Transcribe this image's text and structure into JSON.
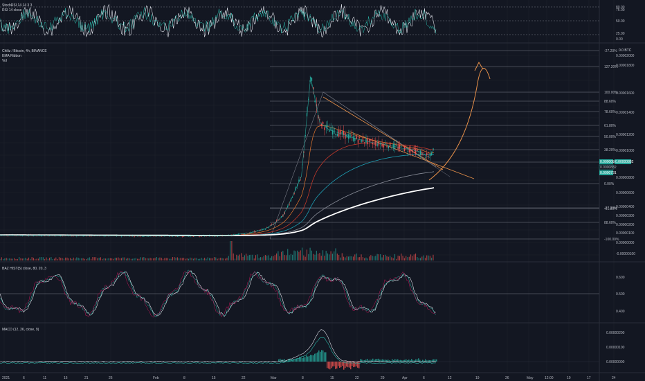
{
  "colors": {
    "background": "#131722",
    "grid": "#1e222d",
    "separator": "#2a2e39",
    "price_line": "#ffffff",
    "ema_orange": "#e8772e",
    "ema_red": "#c0392b",
    "ema_teal": "#1e9fb4",
    "ema_grey": "#8a8e99",
    "candle_up": "#26a69a",
    "candle_down": "#ef5350",
    "fib_line": "#787b86",
    "osc_white": "#e0e3eb",
    "osc_teal": "#2ab7a9",
    "osc_red": "#c2185b",
    "current_price_tag": "#26a69a",
    "trend_orange": "#e8914a"
  },
  "rsi_pane": {
    "legend": [
      "StochRSI 14 14 3 3",
      "RSI 14 close"
    ],
    "axis_ticks": [
      "80.00",
      "75.00",
      "50.00",
      "25.00",
      "0.00"
    ]
  },
  "main_pane": {
    "legend": [
      "Chiliz / Bitcoin, 4h, BINANCE",
      "EMA Ribbon",
      "Vol"
    ],
    "currency_label": "0.0 BTC",
    "price_ticks": [
      "0.00002000",
      "0.00001800",
      "0.00001600",
      "0.00001400",
      "0.00001200",
      "0.00001000",
      "0.00000800",
      "0.00000600",
      "0.00000400",
      "0.00000300",
      "0.00000200",
      "0.00000100",
      "0.00000000",
      "-0.00000100"
    ],
    "fib_labels": [
      "-27.20%",
      "127.20%",
      "100.00%",
      "88.60%",
      "78.60%",
      "61.80%",
      "50.00%",
      "38.20%",
      "23.60%",
      "0.00%",
      "-27.20%",
      "-61.80%",
      "88.60%",
      "-100.00%"
    ],
    "current_price": "0.00000882",
    "price_tags": [
      "0.00000882",
      "0.0000882",
      "0.0000731"
    ]
  },
  "osc_pane_1": {
    "legend": "BAZ HIST(5) close, 80, 20, 3",
    "axis_ticks": [
      "0.600",
      "0.500",
      "0.400"
    ]
  },
  "macd_pane": {
    "legend": "MACD (12, 26, close, 9)",
    "axis_ticks": [
      "0.00000200",
      "0.00000100",
      "0.00000000"
    ]
  },
  "time_axis": [
    "2021",
    "6",
    "11",
    "16",
    "21",
    "26",
    "Feb",
    "8",
    "15",
    "22",
    "Mar",
    "8",
    "15",
    "22",
    "29",
    "Apr",
    "6",
    "12",
    "19",
    "26",
    "May",
    "12:00",
    "10",
    "17",
    "24"
  ],
  "chart_data": {
    "type": "line",
    "title": "Chiliz / Bitcoin, 4h, BINANCE",
    "series": [
      {
        "name": "",
        "x": [
          0,
          5,
          10,
          20,
          30,
          35,
          40,
          45,
          50,
          55,
          58,
          60,
          62,
          64,
          66,
          68,
          70,
          72,
          74,
          76,
          78,
          80,
          82,
          84,
          86,
          88,
          90,
          92,
          94,
          95
        ],
        "values": [
          5.2e-07,
          5e-07,
          4.8e-07,
          4.5e-07,
          4.4e-07,
          4.3e-07,
          4.2e-07,
          4.3e-07,
          4.6e-07,
          7.5e-07,
          1.1e-06,
          1.6e-06,
          2.4e-06,
          4.2e-06,
          6.2e-06,
          1.58e-05,
          1.14e-05,
          1.07e-05,
          1.04e-05,
          1.01e-05,
          9.8e-06,
          9.6e-06,
          9.4e-06,
          9.3e-06,
          9.1e-06,
          8.9e-06,
          8.8e-06,
          8.5e-06,
          8e-06,
          8.8e-06
        ]
      }
    ]
  }
}
